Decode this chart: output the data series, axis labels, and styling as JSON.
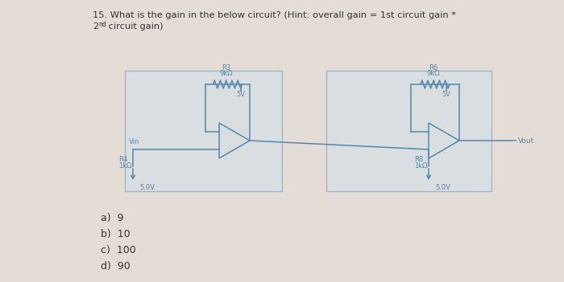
{
  "bg_color": "#e4ddd5",
  "title_line1": "15. What is the gain in the below circuit? (Hint: overall gain = 1st circuit gain *",
  "title_line2_pre": "2",
  "title_line2_sup": "nd",
  "title_line2_post": " circuit gain)",
  "choices": [
    "a)  9",
    "b)  10",
    "c)  100",
    "d)  90"
  ],
  "wire_color": "#5588aa",
  "comp_color": "#5588aa",
  "box_fill": "#cce0ee",
  "box_edge": "#5588aa",
  "text_dark": "#333333",
  "text_comp": "#5577aa",
  "R3_label": "R3",
  "R3_val": "9kΩ",
  "R3_v": "5V",
  "R6_label": "R6",
  "R6_val": "9kΩ",
  "R6_v": "5V",
  "R4_label": "R4",
  "R4_val": "1kΩ",
  "R8_label": "R8",
  "R8_val": "1kΩ",
  "gnd1_v": "5.0V",
  "gnd2_v": "5.0V",
  "Vin_label": "Vin",
  "Vout_label": "Vout"
}
